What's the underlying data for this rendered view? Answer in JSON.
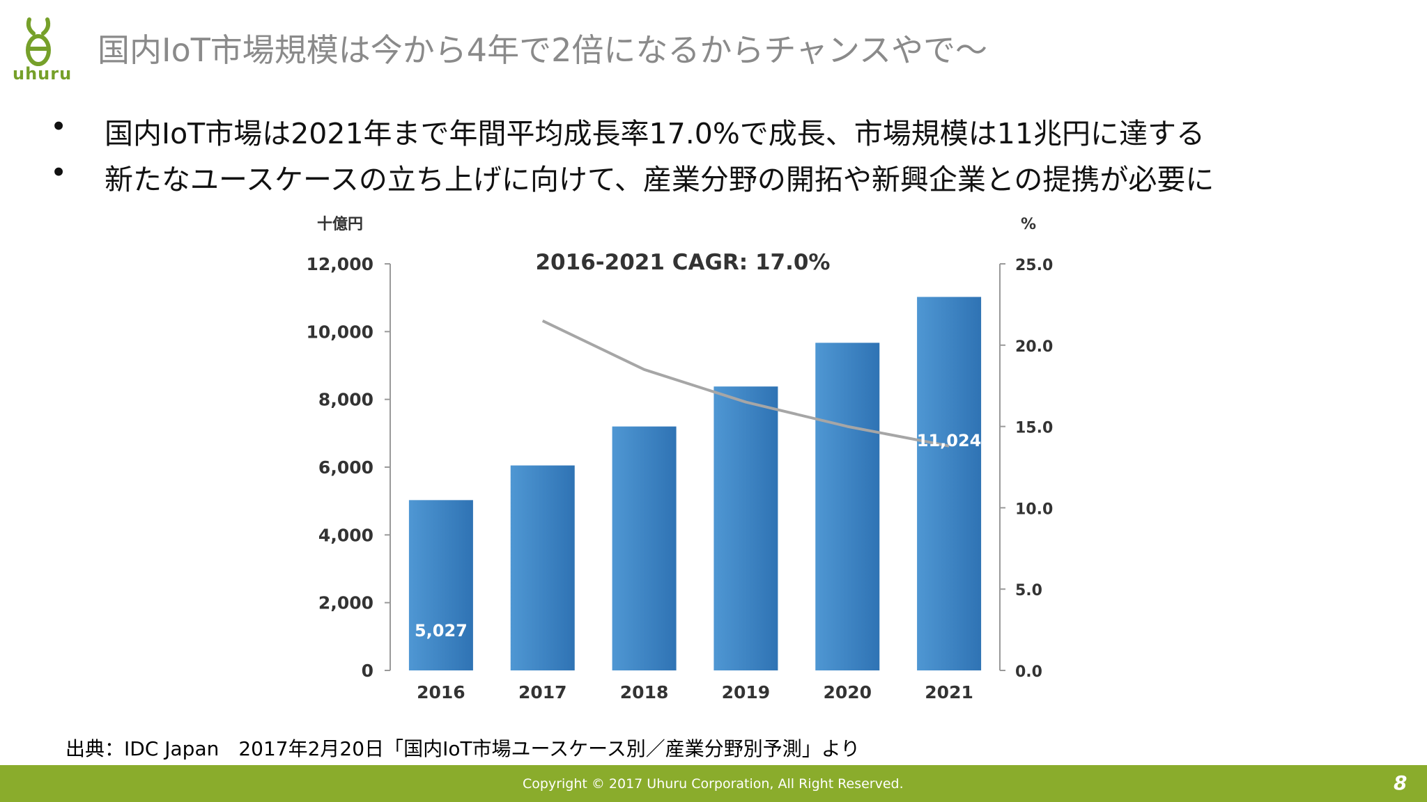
{
  "header": {
    "logo_text": "uhuru",
    "title": "国内IoT市場規模は今から4年で2倍になるからチャンスやで～"
  },
  "bullets": [
    {
      "marker": "•",
      "text": "国内IoT市場は2021年まで年間平均成長率17.0%で成長、市場規模は11兆円に達する"
    },
    {
      "marker": "•",
      "text": "新たなユースケースの立ち上げに向けて、産業分野の開拓や新興企業との提携が必要に"
    }
  ],
  "chart_data": {
    "type": "bar",
    "title": "2016-2021 CAGR: 17.0%",
    "y_unit_left": "十億円",
    "y_unit_right": "%",
    "categories": [
      "2016",
      "2017",
      "2018",
      "2019",
      "2020",
      "2021"
    ],
    "series": [
      {
        "type": "bar",
        "axis": "left",
        "values": [
          5027,
          6050,
          7200,
          8380,
          9670,
          11024
        ]
      },
      {
        "type": "line",
        "axis": "right",
        "x": [
          "2017",
          "2018",
          "2019",
          "2020",
          "2021"
        ],
        "values": [
          21.5,
          18.5,
          16.5,
          15.0,
          13.8
        ]
      }
    ],
    "data_labels": [
      {
        "category": "2016",
        "text": "5,027"
      },
      {
        "category": "2021",
        "text": "11,024"
      }
    ],
    "ylim_left": [
      0,
      12000
    ],
    "ylim_right": [
      0,
      25
    ],
    "yticks_left": [
      "0",
      "2,000",
      "4,000",
      "6,000",
      "8,000",
      "10,000",
      "12,000"
    ],
    "yticks_right": [
      "0.0",
      "5.0",
      "10.0",
      "15.0",
      "20.0",
      "25.0"
    ],
    "colors": {
      "bar": "#4f97d3",
      "bar_dark": "#2f73b4",
      "line": "#a6a6a6"
    },
    "grid": false
  },
  "source": "出典：IDC Japan　2017年2月20日「国内IoT市場ユースケース別／産業分野別予測」より",
  "footer": {
    "copyright": "Copyright © 2017 Uhuru Corporation, All Right Reserved.",
    "page_number": "8",
    "color": "#8aac2c"
  }
}
